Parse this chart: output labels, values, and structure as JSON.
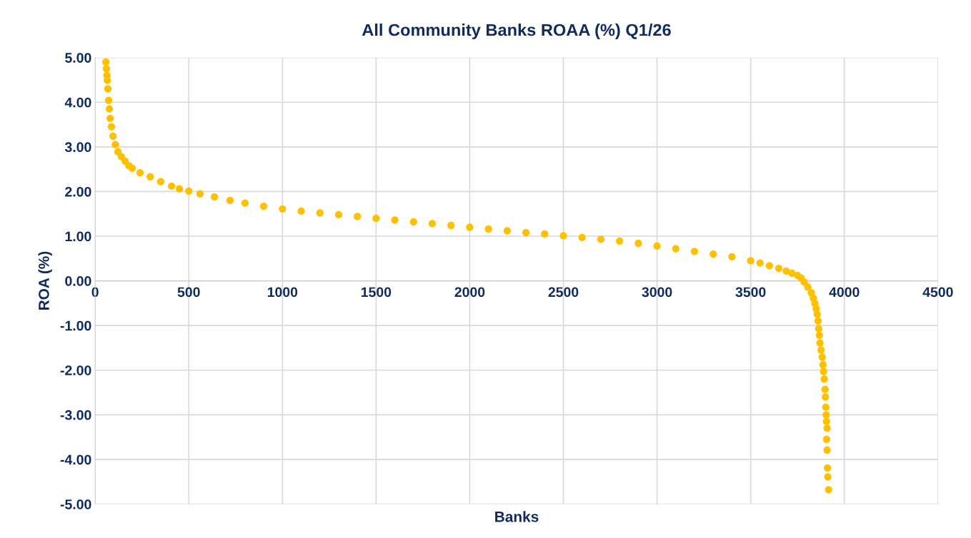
{
  "chart_data": {
    "type": "scatter",
    "title": "All Community Banks ROAA (%) Q1/26",
    "xlabel": "Banks",
    "ylabel": "ROA (%)",
    "x": [
      57,
      60,
      63,
      65,
      68,
      72,
      76,
      80,
      87,
      95,
      108,
      122,
      140,
      160,
      180,
      198,
      240,
      294,
      350,
      408,
      450,
      500,
      560,
      637,
      720,
      800,
      900,
      1000,
      1100,
      1200,
      1300,
      1400,
      1500,
      1600,
      1700,
      1800,
      1900,
      2000,
      2100,
      2200,
      2300,
      2400,
      2500,
      2600,
      2700,
      2800,
      2900,
      3000,
      3100,
      3200,
      3300,
      3400,
      3500,
      3550,
      3600,
      3650,
      3690,
      3720,
      3751,
      3770,
      3786,
      3805,
      3824,
      3835,
      3843,
      3850,
      3855,
      3860,
      3863,
      3867,
      3870,
      3876,
      3882,
      3886,
      3889,
      3893,
      3897,
      3899,
      3901,
      3903,
      3905,
      3908,
      3905,
      3908,
      3910,
      3912,
      3916
    ],
    "values": [
      4.9,
      4.75,
      4.6,
      4.49,
      4.3,
      4.04,
      3.85,
      3.64,
      3.45,
      3.24,
      3.05,
      2.89,
      2.78,
      2.68,
      2.58,
      2.52,
      2.42,
      2.33,
      2.22,
      2.12,
      2.06,
      2.01,
      1.95,
      1.88,
      1.8,
      1.74,
      1.67,
      1.61,
      1.56,
      1.52,
      1.48,
      1.44,
      1.4,
      1.36,
      1.32,
      1.28,
      1.24,
      1.2,
      1.16,
      1.12,
      1.08,
      1.05,
      1.01,
      0.97,
      0.93,
      0.89,
      0.84,
      0.78,
      0.72,
      0.66,
      0.6,
      0.54,
      0.45,
      0.4,
      0.34,
      0.28,
      0.22,
      0.17,
      0.12,
      0.06,
      -0.03,
      -0.14,
      -0.27,
      -0.39,
      -0.51,
      -0.63,
      -0.75,
      -0.9,
      -1.07,
      -1.22,
      -1.39,
      -1.55,
      -1.71,
      -1.88,
      -2.03,
      -2.2,
      -2.43,
      -2.6,
      -2.83,
      -3.0,
      -3.15,
      -3.3,
      -3.55,
      -3.79,
      -4.19,
      -4.39,
      -4.68
    ],
    "color": "#ffc000",
    "marker": "circle",
    "grid": true,
    "xlim": [
      0,
      4500
    ],
    "xticks": [
      0,
      500,
      1000,
      1500,
      2000,
      2500,
      3000,
      3500,
      4000,
      4500
    ],
    "ylim": [
      -5,
      5
    ],
    "yticks": [
      {
        "value": 5,
        "label": "5.00"
      },
      {
        "value": 4,
        "label": "4.00"
      },
      {
        "value": 3,
        "label": "3.00"
      },
      {
        "value": 2,
        "label": "2.00"
      },
      {
        "value": 1,
        "label": "1.00"
      },
      {
        "value": 0,
        "label": "0.00"
      },
      {
        "value": -1,
        "label": "-1.00"
      },
      {
        "value": -2,
        "label": "-2.00"
      },
      {
        "value": -3,
        "label": "-3.00"
      },
      {
        "value": -4,
        "label": "-4.00"
      },
      {
        "value": -5,
        "label": "-5.00"
      }
    ]
  }
}
